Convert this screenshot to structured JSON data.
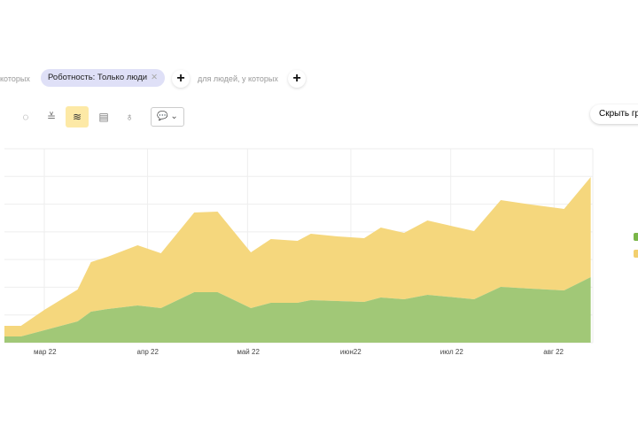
{
  "filters": {
    "prefix": "которых",
    "chip": "Роботность: Только люди",
    "chip_close": "✕",
    "add": "+",
    "people_label": "для людей, у которых",
    "add2": "+"
  },
  "toolbar": {
    "icons": [
      "pie-icon",
      "line-icon",
      "stacked-area-icon",
      "table-icon",
      "map-icon"
    ],
    "glyphs": [
      "◌",
      "≚",
      "≋",
      "▤",
      "♁"
    ],
    "comment_glyph": "💬 ⌄"
  },
  "hide_button": "Скрыть гр",
  "colors": {
    "green": "#a1c877",
    "yellow": "#f5d77d",
    "legend_green": "#7ab648",
    "legend_yellow": "#f2cf6e"
  },
  "chart_data": {
    "type": "area",
    "stacked": true,
    "title": "",
    "xlabel": "",
    "ylabel": "",
    "x_days_from_mar1": [
      -12,
      -7,
      0,
      10,
      14,
      19,
      28,
      35,
      45,
      52,
      62,
      68,
      76,
      80,
      88,
      96,
      101,
      108,
      115,
      129,
      137,
      146,
      156,
      164
    ],
    "series": [
      {
        "name": "green",
        "values": [
          7,
          7,
          14,
          24,
          35,
          38,
          42,
          39,
          57,
          57,
          39,
          45,
          45,
          48,
          47,
          46,
          51,
          49,
          54,
          49,
          63,
          61,
          59,
          74
        ]
      },
      {
        "name": "yellow",
        "values": [
          12,
          12,
          23,
          36,
          56,
          59,
          68,
          62,
          90,
          91,
          63,
          72,
          70,
          75,
          73,
          72,
          79,
          75,
          84,
          77,
          98,
          95,
          92,
          113
        ]
      }
    ],
    "x_ticks": [
      {
        "day": 0,
        "label": "мар 22"
      },
      {
        "day": 31,
        "label": "апр 22"
      },
      {
        "day": 61,
        "label": "май 22"
      },
      {
        "day": 92,
        "label": "июн22"
      },
      {
        "day": 122,
        "label": "июл 22"
      },
      {
        "day": 153,
        "label": "авг 22"
      }
    ],
    "ylim": [
      0,
      219
    ],
    "grid": true
  }
}
